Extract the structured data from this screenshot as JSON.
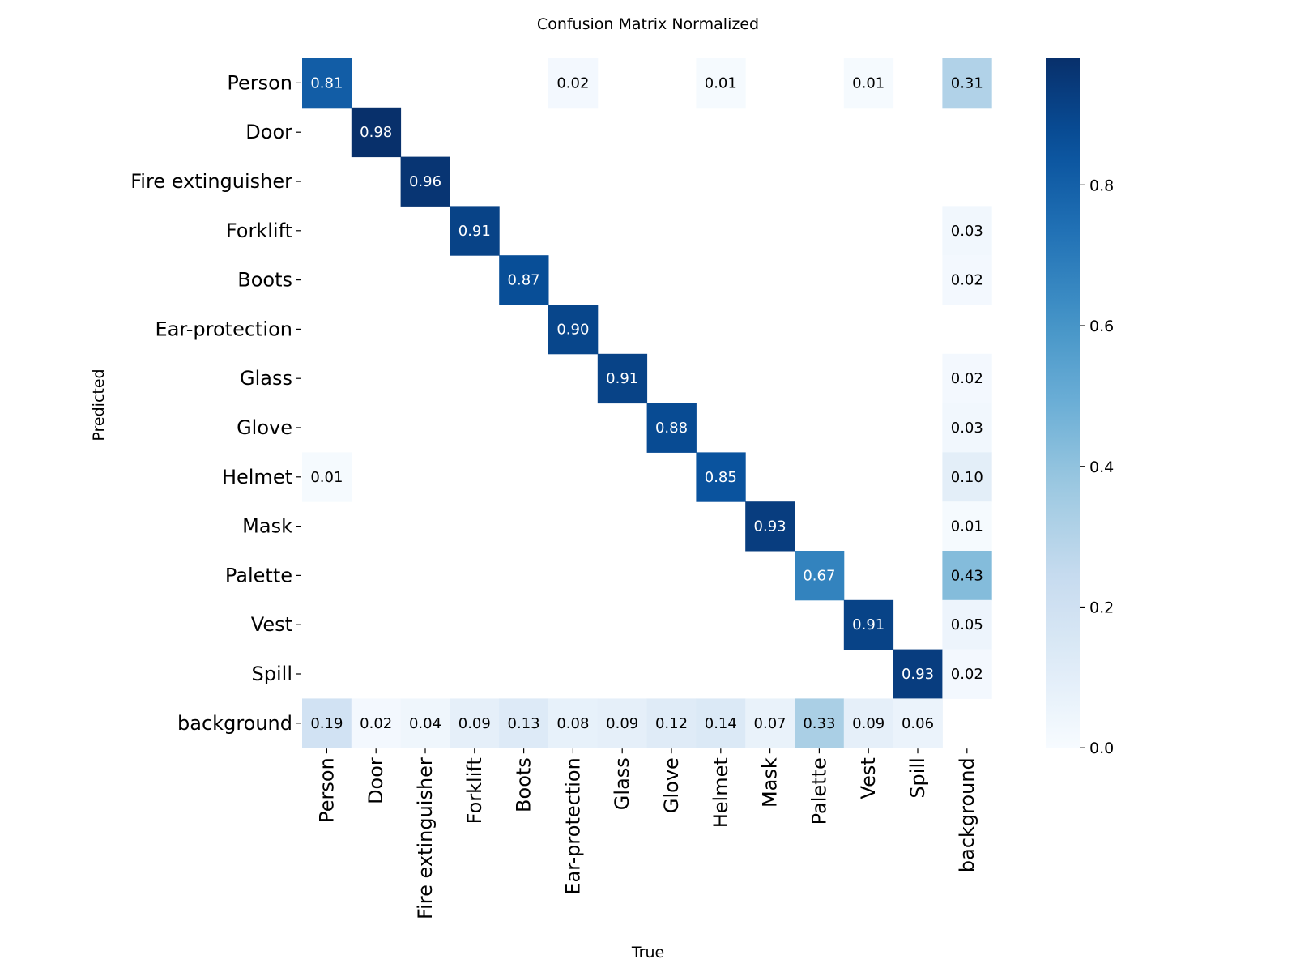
{
  "chart_data": {
    "type": "heatmap",
    "title": "Confusion Matrix Normalized",
    "xlabel": "True",
    "ylabel": "Predicted",
    "x_categories": [
      "Person",
      "Door",
      "Fire extinguisher",
      "Forklift",
      "Boots",
      "Ear-protection",
      "Glass",
      "Glove",
      "Helmet",
      "Mask",
      "Palette",
      "Vest",
      "Spill",
      "background"
    ],
    "y_categories": [
      "Person",
      "Door",
      "Fire extinguisher",
      "Forklift",
      "Boots",
      "Ear-protection",
      "Glass",
      "Glove",
      "Helmet",
      "Mask",
      "Palette",
      "Vest",
      "Spill",
      "background"
    ],
    "values": [
      [
        0.81,
        null,
        null,
        null,
        null,
        0.02,
        null,
        null,
        0.01,
        null,
        null,
        0.01,
        null,
        0.31
      ],
      [
        null,
        0.98,
        null,
        null,
        null,
        null,
        null,
        null,
        null,
        null,
        null,
        null,
        null,
        null
      ],
      [
        null,
        null,
        0.96,
        null,
        null,
        null,
        null,
        null,
        null,
        null,
        null,
        null,
        null,
        null
      ],
      [
        null,
        null,
        null,
        0.91,
        null,
        null,
        null,
        null,
        null,
        null,
        null,
        null,
        null,
        0.03
      ],
      [
        null,
        null,
        null,
        null,
        0.87,
        null,
        null,
        null,
        null,
        null,
        null,
        null,
        null,
        0.02
      ],
      [
        null,
        null,
        null,
        null,
        null,
        0.9,
        null,
        null,
        null,
        null,
        null,
        null,
        null,
        null
      ],
      [
        null,
        null,
        null,
        null,
        null,
        null,
        0.91,
        null,
        null,
        null,
        null,
        null,
        null,
        0.02
      ],
      [
        null,
        null,
        null,
        null,
        null,
        null,
        null,
        0.88,
        null,
        null,
        null,
        null,
        null,
        0.03
      ],
      [
        0.01,
        null,
        null,
        null,
        null,
        null,
        null,
        null,
        0.85,
        null,
        null,
        null,
        null,
        0.1
      ],
      [
        null,
        null,
        null,
        null,
        null,
        null,
        null,
        null,
        null,
        0.93,
        null,
        null,
        null,
        0.01
      ],
      [
        null,
        null,
        null,
        null,
        null,
        null,
        null,
        null,
        null,
        null,
        0.67,
        null,
        null,
        0.43
      ],
      [
        null,
        null,
        null,
        null,
        null,
        null,
        null,
        null,
        null,
        null,
        null,
        0.91,
        null,
        0.05
      ],
      [
        null,
        null,
        null,
        null,
        null,
        null,
        null,
        null,
        null,
        null,
        null,
        null,
        0.93,
        0.02
      ],
      [
        0.19,
        0.02,
        0.04,
        0.09,
        0.13,
        0.08,
        0.09,
        0.12,
        0.14,
        0.07,
        0.33,
        0.09,
        0.06,
        null
      ]
    ],
    "colormap": "Blues",
    "vmin": 0.0,
    "vmax": 0.98,
    "colorbar_ticks": [
      0.0,
      0.2,
      0.4,
      0.6,
      0.8
    ],
    "colorbar_tick_labels": [
      "0.0",
      "0.2",
      "0.4",
      "0.6",
      "0.8"
    ],
    "grid": false
  }
}
